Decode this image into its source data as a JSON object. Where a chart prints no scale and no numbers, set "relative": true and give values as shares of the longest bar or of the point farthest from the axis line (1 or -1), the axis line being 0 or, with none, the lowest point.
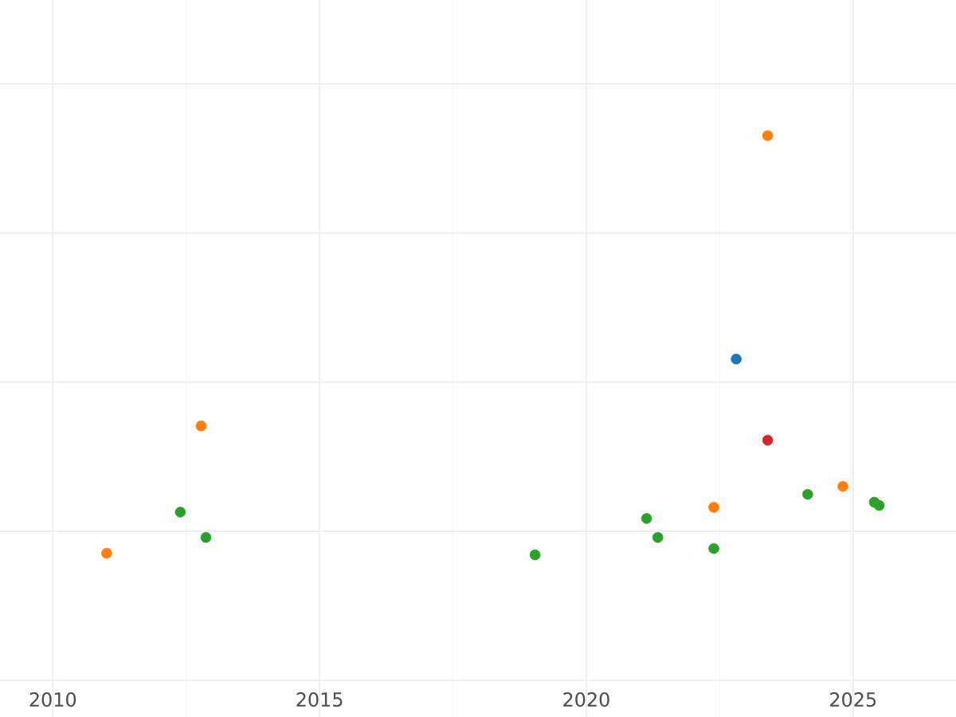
{
  "chart_data": {
    "type": "scatter",
    "relative": true,
    "marker": "circle",
    "grid": true,
    "tick_labels": "x",
    "xlim": [
      2009.01,
      2026.93
    ],
    "xticks": [
      2010,
      2015,
      2020,
      2025
    ],
    "series": [
      {
        "color": "#1f77b4",
        "x": [
          2022.81
        ],
        "values": [
          0.435
        ]
      },
      {
        "color": "#ff7f0e",
        "x": [
          2011.01,
          2012.78,
          2022.39,
          2023.4,
          2024.81
        ],
        "values": [
          -0.056,
          0.266,
          0.06,
          1.0,
          0.113
        ]
      },
      {
        "color": "#2ca02c",
        "x": [
          2012.39,
          2012.87,
          2019.04,
          2021.13,
          2021.34,
          2022.39,
          2024.15,
          2025.4,
          2025.49
        ],
        "values": [
          0.048,
          -0.016,
          -0.06,
          0.032,
          -0.016,
          -0.044,
          0.093,
          0.073,
          0.065
        ]
      },
      {
        "color": "#d62728",
        "x": [
          2023.4
        ],
        "values": [
          0.23
        ]
      }
    ]
  }
}
